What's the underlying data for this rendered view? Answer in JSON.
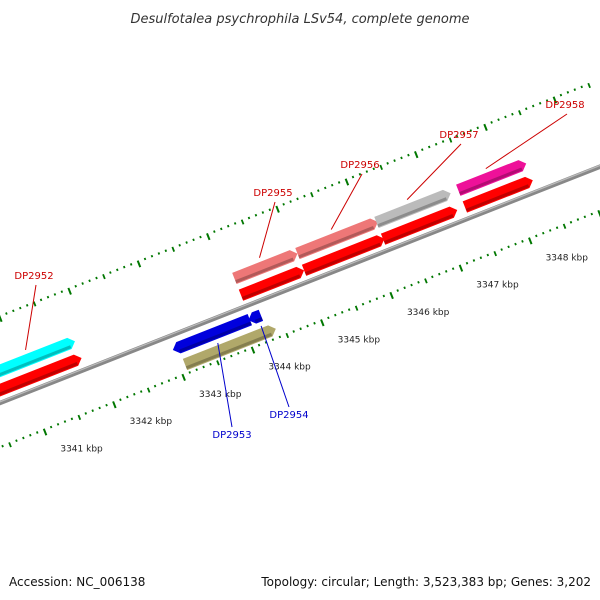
{
  "title": "Desulfotalea psychrophila LSv54, complete genome",
  "footer": {
    "accession": "Accession: NC_006138",
    "summary": "Topology: circular; Length: 3,523,383 bp; Genes: 3,202"
  },
  "scale": {
    "unit": "kbp",
    "labels": [
      {
        "text": "3341 kbp",
        "kb": 3341
      },
      {
        "text": "3342 kbp",
        "kb": 3342
      },
      {
        "text": "3343 kbp",
        "kb": 3343
      },
      {
        "text": "3344 kbp",
        "kb": 3344
      },
      {
        "text": "3345 kbp",
        "kb": 3345
      },
      {
        "text": "3346 kbp",
        "kb": 3346
      },
      {
        "text": "3347 kbp",
        "kb": 3347
      },
      {
        "text": "3348 kbp",
        "kb": 3348
      }
    ]
  },
  "genes": [
    {
      "name": "DP2952",
      "strand": "+",
      "start_kb": 3340.58,
      "end_kb": 3341.74,
      "color": "#00ffff",
      "label_color": "#cc0000"
    },
    {
      "name": "DP2953",
      "strand": "-",
      "start_kb": 3343.08,
      "end_kb": 3344.11,
      "color": "#0000dd",
      "label_color": "#0000cc"
    },
    {
      "name": "DP2954",
      "strand": "-",
      "start_kb": 3344.17,
      "end_kb": 3344.27,
      "color": "#0000dd",
      "label_color": "#0000cc"
    },
    {
      "name": "DP2955",
      "strand": "+",
      "start_kb": 3344.12,
      "end_kb": 3344.95,
      "color": "#ee7777",
      "label_color": "#cc0000"
    },
    {
      "name": "DP2956",
      "strand": "+",
      "start_kb": 3345.03,
      "end_kb": 3346.11,
      "color": "#ee7777",
      "label_color": "#cc0000"
    },
    {
      "name": "DP2957",
      "strand": "+",
      "start_kb": 3346.17,
      "end_kb": 3347.16,
      "color": "#bbbbbb",
      "label_color": "#cc0000"
    },
    {
      "name": "DP2958",
      "strand": "+",
      "start_kb": 3347.35,
      "end_kb": 3348.25,
      "color": "#ee1199",
      "label_color": "#cc0000"
    }
  ],
  "colors": {
    "backbone": "#888888",
    "cds": "#ff0000",
    "olive_track": "#b0a86a",
    "tick": "#007700"
  }
}
